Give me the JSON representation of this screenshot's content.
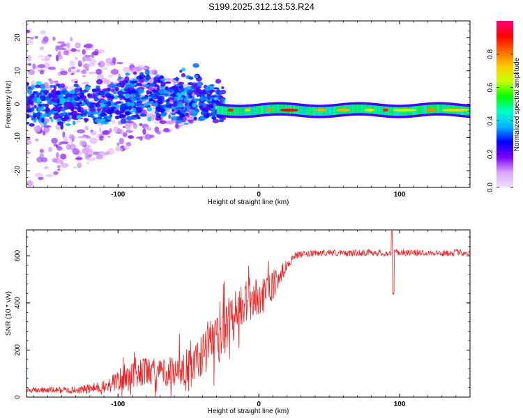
{
  "title": "S199.2025.312.13.53.R24",
  "chart_data": [
    {
      "type": "heatmap",
      "name": "spectrogram",
      "xlabel": "Height of straight line (km)",
      "ylabel": "Frequency (Hz)",
      "xlim": [
        -165,
        150
      ],
      "ylim": [
        -25,
        25
      ],
      "xticks": [
        -100,
        0,
        100
      ],
      "yticks": [
        -20,
        -10,
        0,
        10,
        20
      ],
      "colorbar": {
        "label": "Normalized spectral amplitude",
        "range": [
          0,
          1
        ],
        "ticks": [
          "0.0",
          "0.2",
          "0.4",
          "0.6",
          "0.8"
        ],
        "tick_values": [
          0,
          0.2,
          0.4,
          0.6,
          0.8
        ],
        "stops": [
          "#f0e0ff",
          "#d9a6f5",
          "#7b00ff",
          "#0000ff",
          "#00b4ff",
          "#00ffc8",
          "#00ff00",
          "#c8ff00",
          "#ffcc00",
          "#ff6600",
          "#ff0000",
          "#ff0080"
        ]
      },
      "description_free": true
    },
    {
      "type": "line",
      "name": "snr",
      "xlabel": "Height of straight line (km)",
      "ylabel": "SNR (10 * v/v)",
      "xlim": [
        -165,
        150
      ],
      "ylim": [
        0,
        710
      ],
      "xticks": [
        -100,
        0,
        100
      ],
      "yticks": [
        0,
        200,
        400,
        600
      ],
      "color": "#ee2222",
      "profile_x": [
        -165,
        -130,
        -110,
        -100,
        -90,
        -80,
        -70,
        -60,
        -50,
        -40,
        -30,
        -20,
        -10,
        0,
        10,
        20,
        25,
        30,
        40,
        50,
        60,
        70,
        80,
        90,
        100,
        110,
        120,
        130,
        140,
        150
      ],
      "profile_y": [
        30,
        30,
        40,
        70,
        100,
        110,
        100,
        110,
        130,
        180,
        250,
        330,
        400,
        430,
        470,
        560,
        600,
        605,
        610,
        615,
        610,
        612,
        615,
        610,
        615,
        612,
        615,
        610,
        615,
        612
      ],
      "noise_amp": [
        12,
        15,
        30,
        50,
        60,
        60,
        60,
        70,
        80,
        90,
        100,
        110,
        100,
        80,
        60,
        25,
        15,
        14,
        14,
        14,
        14,
        14,
        14,
        14,
        14,
        14,
        14,
        14,
        14,
        14
      ],
      "dip": {
        "x": 95,
        "y": 430
      }
    }
  ]
}
